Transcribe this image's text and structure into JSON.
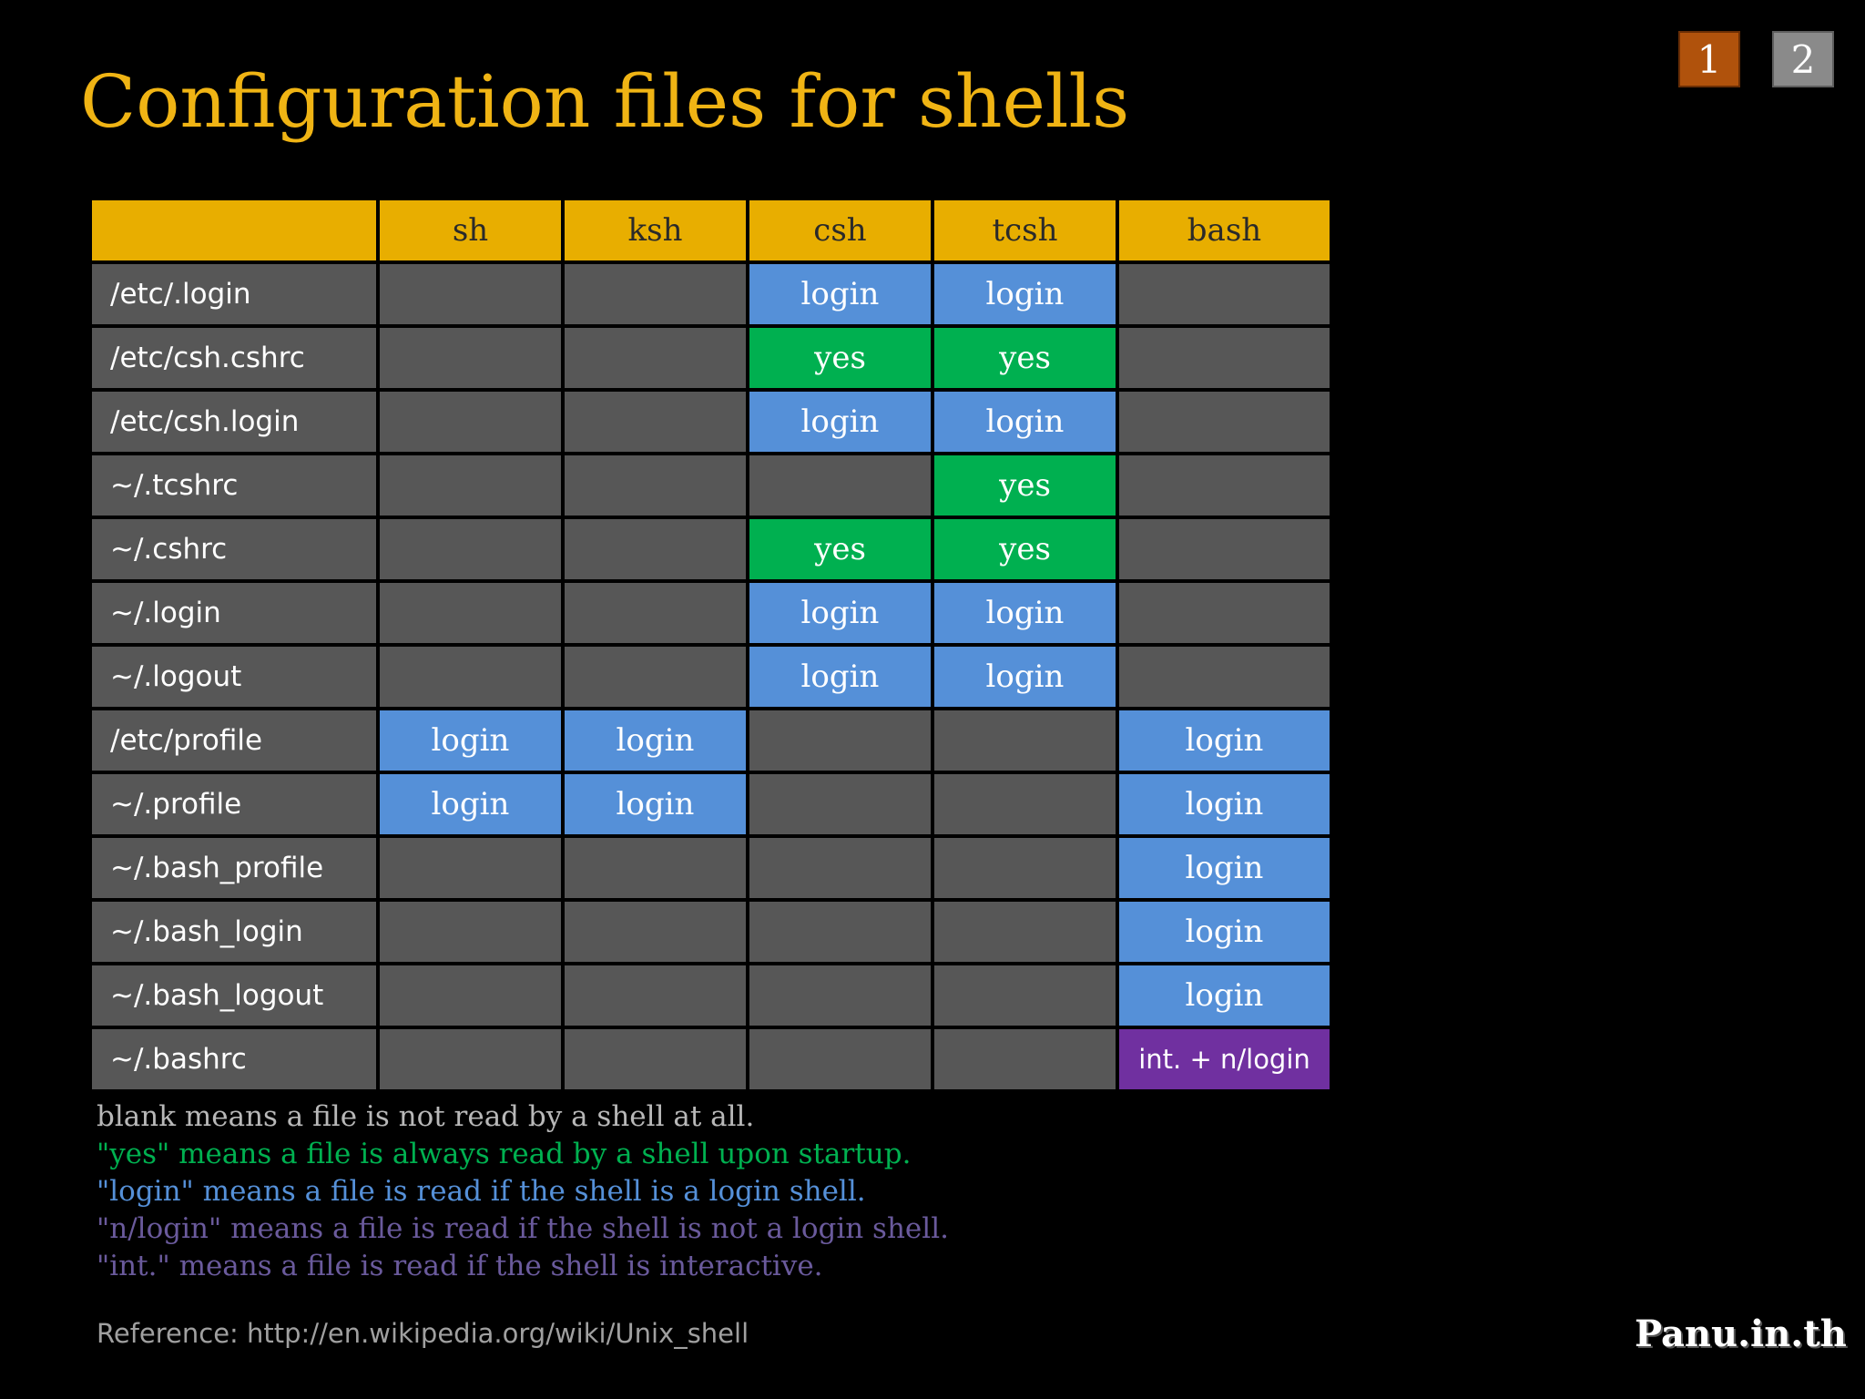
{
  "title": "Configuration files for shells",
  "pagination": [
    "1",
    "2"
  ],
  "colors": {
    "title": "#f0b414",
    "header_bg": "#e8ae00",
    "cell_bg": "#575757",
    "login": "#5590d8",
    "yes": "#00b050",
    "int_nlogin": "#7030a0"
  },
  "table": {
    "columns": [
      "",
      "sh",
      "ksh",
      "csh",
      "tcsh",
      "bash"
    ],
    "rows": [
      {
        "file": "/etc/.login",
        "values": [
          "",
          "",
          "login",
          "login",
          ""
        ]
      },
      {
        "file": "/etc/csh.cshrc",
        "values": [
          "",
          "",
          "yes",
          "yes",
          ""
        ]
      },
      {
        "file": "/etc/csh.login",
        "values": [
          "",
          "",
          "login",
          "login",
          ""
        ]
      },
      {
        "file": "~/.tcshrc",
        "values": [
          "",
          "",
          "",
          "yes",
          ""
        ]
      },
      {
        "file": "~/.cshrc",
        "values": [
          "",
          "",
          "yes",
          "yes",
          ""
        ]
      },
      {
        "file": "~/.login",
        "values": [
          "",
          "",
          "login",
          "login",
          ""
        ]
      },
      {
        "file": "~/.logout",
        "values": [
          "",
          "",
          "login",
          "login",
          ""
        ]
      },
      {
        "file": "/etc/profile",
        "values": [
          "login",
          "login",
          "",
          "",
          "login"
        ]
      },
      {
        "file": "~/.profile",
        "values": [
          "login",
          "login",
          "",
          "",
          "login"
        ]
      },
      {
        "file": "~/.bash_profile",
        "values": [
          "",
          "",
          "",
          "",
          "login"
        ]
      },
      {
        "file": "~/.bash_login",
        "values": [
          "",
          "",
          "",
          "",
          "login"
        ]
      },
      {
        "file": "~/.bash_logout",
        "values": [
          "",
          "",
          "",
          "",
          "login"
        ]
      },
      {
        "file": "~/.bashrc",
        "values": [
          "",
          "",
          "",
          "",
          "int. + n/login"
        ]
      }
    ]
  },
  "legend": {
    "blank": "blank means a file is not read by a shell at all.",
    "yes": "\"yes\" means a file is always read by a shell upon startup.",
    "login": "\"login\" means a file is read if the shell is a login shell.",
    "nlogin": "\"n/login\" means a file is read if the shell is not a login shell.",
    "int": "\"int.\" means a file is read if the shell is interactive."
  },
  "reference": "Reference: http://en.wikipedia.org/wiki/Unix_shell",
  "brand": "Panu.in.th"
}
